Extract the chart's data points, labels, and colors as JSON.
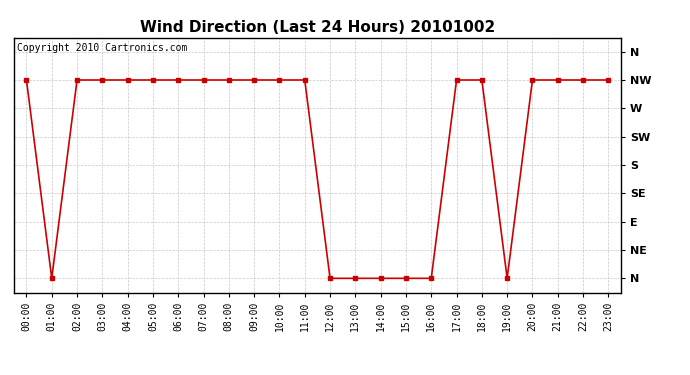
{
  "title": "Wind Direction (Last 24 Hours) 20101002",
  "copyright": "Copyright 2010 Cartronics.com",
  "x_labels": [
    "00:00",
    "01:00",
    "02:00",
    "03:00",
    "04:00",
    "05:00",
    "06:00",
    "07:00",
    "08:00",
    "09:00",
    "10:00",
    "11:00",
    "12:00",
    "13:00",
    "14:00",
    "15:00",
    "16:00",
    "17:00",
    "18:00",
    "19:00",
    "20:00",
    "21:00",
    "22:00",
    "23:00"
  ],
  "y_labels": [
    "N",
    "NE",
    "E",
    "SE",
    "S",
    "SW",
    "W",
    "NW",
    "N"
  ],
  "y_values": [
    0,
    1,
    2,
    3,
    4,
    5,
    6,
    7,
    8
  ],
  "data_x": [
    0,
    1,
    2,
    3,
    4,
    5,
    6,
    7,
    8,
    9,
    10,
    11,
    12,
    13,
    14,
    15,
    16,
    17,
    18,
    19,
    20,
    21,
    22,
    23
  ],
  "data_y": [
    7,
    0,
    7,
    7,
    7,
    7,
    7,
    7,
    7,
    7,
    7,
    7,
    0,
    0,
    0,
    0,
    0,
    7,
    7,
    0,
    7,
    7,
    7,
    7
  ],
  "line_color": "#cc0000",
  "bg_color": "#ffffff",
  "plot_bg_color": "#ffffff",
  "grid_color": "#bbbbbb",
  "title_fontsize": 11,
  "copyright_fontsize": 7,
  "tick_fontsize": 7,
  "ytick_fontsize": 8
}
